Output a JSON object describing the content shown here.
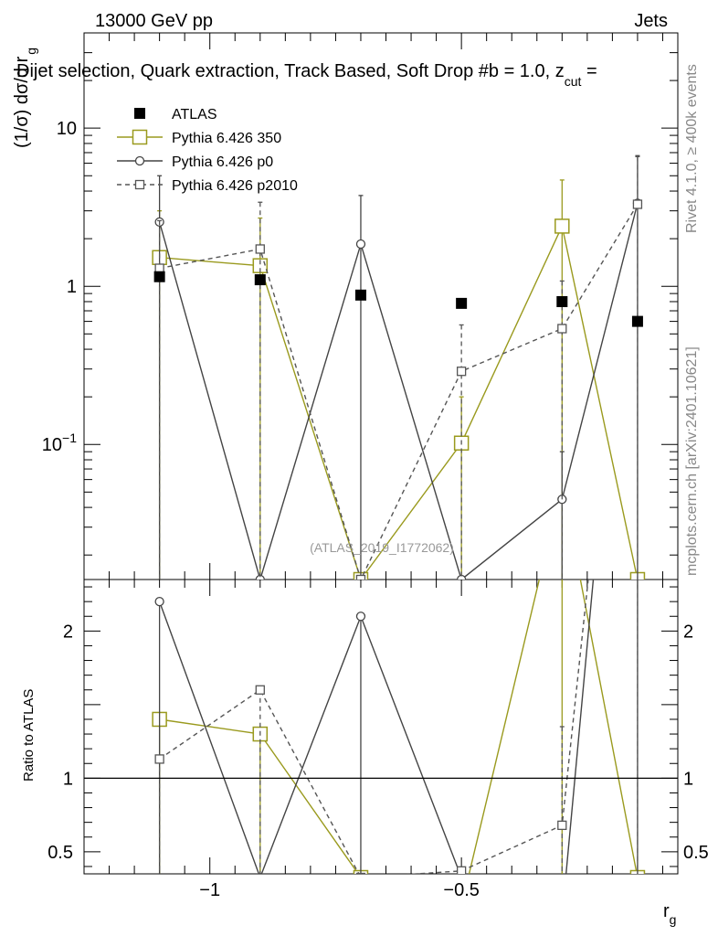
{
  "header": {
    "left": "13000 GeV pp",
    "right": "Jets"
  },
  "plot_title": "Dijet selection, Quark extraction, Track Based, Soft Drop #b = 1.0, z",
  "plot_title_sub": "cut",
  "plot_title_tail": " = ",
  "side_label_top": "Rivet 4.1.0, ≥ 400k events",
  "side_label_bottom": "mcplots.cern.ch [arXiv:2401.10621]",
  "watermark": "(ATLAS_2019_I1772062)",
  "ylabel_main": "(1/σ) dσ/d r",
  "ylabel_main_sub": "g",
  "ylabel_ratio": "Ratio to ATLAS",
  "xlabel": "r",
  "xlabel_sub": "g",
  "colors": {
    "atlas": "#000000",
    "py350": "#9a9a1e",
    "p0": "#444444",
    "p2010": "#555555"
  },
  "chart_data": {
    "type": "line",
    "x": [
      -1.1,
      -0.9,
      -0.7,
      -0.5,
      -0.3,
      -0.15
    ],
    "xlim": [
      -1.25,
      -0.07
    ],
    "ylim_main": [
      0.014,
      40
    ],
    "ylim_ratio": [
      0.35,
      2.35
    ],
    "main_ticks_y": [
      {
        "value": 0.1,
        "label": "10",
        "sup": "−1"
      },
      {
        "value": 1,
        "label": "1",
        "sup": ""
      },
      {
        "value": 10,
        "label": "10",
        "sup": ""
      }
    ],
    "ratio_ticks_y": [
      {
        "value": 0.5,
        "label": "0.5"
      },
      {
        "value": 1,
        "label": "1"
      },
      {
        "value": 2,
        "label": "2"
      }
    ],
    "x_ticks": [
      {
        "value": -1,
        "label": "−1"
      },
      {
        "value": -0.5,
        "label": "−0.5"
      }
    ],
    "legend": [
      "ATLAS",
      "Pythia 6.426 350",
      "Pythia 6.426 p0",
      "Pythia 6.426 p2010"
    ],
    "series": [
      {
        "name": "ATLAS",
        "key": "atlas",
        "marker": "filled-square",
        "values": [
          1.15,
          1.1,
          0.88,
          0.78,
          0.8,
          0.6
        ]
      },
      {
        "name": "Pythia 6.426 350",
        "key": "py350",
        "marker": "open-square",
        "values": [
          1.52,
          1.35,
          0.001,
          0.102,
          2.4,
          0.001
        ],
        "err_hi": [
          3.0,
          2.7,
          null,
          0.2,
          4.7,
          null
        ],
        "ratio": [
          1.4,
          1.3,
          0.001,
          0.13,
          3.0,
          0.001
        ]
      },
      {
        "name": "Pythia 6.426 p0",
        "key": "p0",
        "marker": "open-circle",
        "values": [
          2.55,
          0.001,
          1.85,
          0.001,
          0.045,
          3.35
        ],
        "err_hi": [
          5.0,
          null,
          3.75,
          null,
          0.09,
          6.7
        ],
        "ratio": [
          2.2,
          0.001,
          2.1,
          0.001,
          0.056,
          5.6
        ]
      },
      {
        "name": "Pythia 6.426 p2010",
        "key": "p2010",
        "marker": "open-square-small",
        "values": [
          1.3,
          1.72,
          0.001,
          0.29,
          0.54,
          3.3
        ],
        "err_hi": [
          2.6,
          3.4,
          null,
          0.57,
          1.08,
          6.6
        ],
        "ratio": [
          1.13,
          1.6,
          0.001,
          0.37,
          0.68,
          5.5
        ],
        "ratio_err_hi": [
          null,
          null,
          null,
          null,
          1.35,
          null
        ]
      }
    ]
  }
}
